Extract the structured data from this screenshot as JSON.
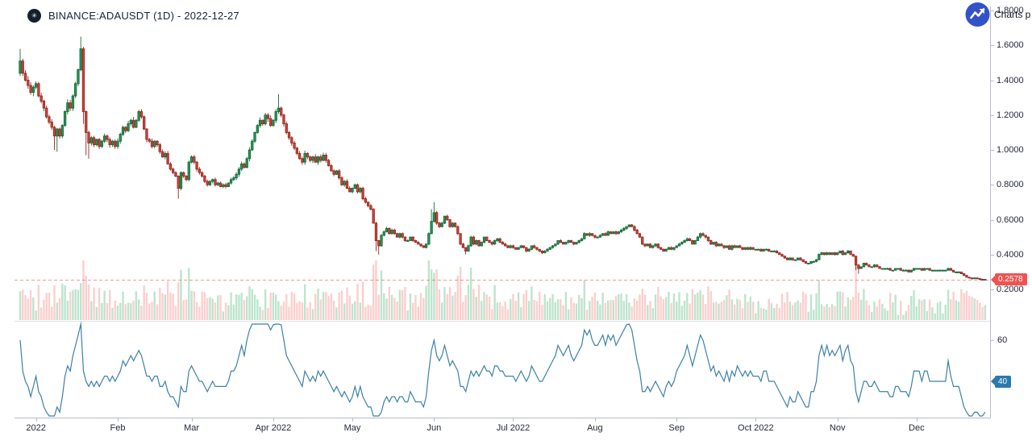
{
  "header": {
    "title": "BINANCE:ADAUSDT (1D) - 2022-12-27",
    "icon": "cardano-logo",
    "icon_glyph": "✳"
  },
  "attribution": {
    "text": "Charts p",
    "logo": "tradingview-logo",
    "logo_color": "#3452c8"
  },
  "price_axis": {
    "ticks": [
      "1.8000",
      "1.6000",
      "1.4000",
      "1.2000",
      "1.0000",
      "0.8000",
      "0.6000",
      "0.4000",
      "0.2000"
    ],
    "tick_values": [
      1.8,
      1.6,
      1.4,
      1.2,
      1.0,
      0.8,
      0.6,
      0.4,
      0.2
    ],
    "last_price_tag": {
      "text": "0.2578",
      "value": 0.2578,
      "color": "#ef5350"
    }
  },
  "indicator_axis": {
    "tick": "60",
    "tick_value": 60,
    "tag": {
      "text": "40",
      "value": 40,
      "color": "#2a7aad"
    }
  },
  "time_axis": {
    "labels": [
      {
        "text": "2022",
        "day_index": 6
      },
      {
        "text": "Feb",
        "day_index": 37
      },
      {
        "text": "Mar",
        "day_index": 65
      },
      {
        "text": "Apr 2022",
        "day_index": 96
      },
      {
        "text": "May",
        "day_index": 126
      },
      {
        "text": "Jun",
        "day_index": 157
      },
      {
        "text": "Jul 2022",
        "day_index": 187
      },
      {
        "text": "Aug",
        "day_index": 218
      },
      {
        "text": "Sep",
        "day_index": 249
      },
      {
        "text": "Oct 2022",
        "day_index": 279
      },
      {
        "text": "Nov",
        "day_index": 310
      },
      {
        "text": "Dec",
        "day_index": 340
      }
    ]
  },
  "chart_data": {
    "type": "candlestick",
    "symbol": "BINANCE:ADAUSDT",
    "interval": "1D",
    "as_of": "2022-12-27",
    "start_date": "2021-12-26",
    "title": "BINANCE:ADAUSDT (1D) - 2022-12-27",
    "ylim": [
      0.13,
      1.83
    ],
    "yticks": [
      1.8,
      1.6,
      1.4,
      1.2,
      1.0,
      0.8,
      0.6,
      0.4,
      0.2
    ],
    "grid": false,
    "legend_position": "top-left",
    "last_price": 0.2578,
    "first_open": 1.44,
    "closes": [
      1.51,
      1.44,
      1.4,
      1.37,
      1.33,
      1.36,
      1.38,
      1.31,
      1.28,
      1.24,
      1.19,
      1.16,
      1.13,
      1.08,
      1.12,
      1.08,
      1.14,
      1.22,
      1.27,
      1.24,
      1.31,
      1.38,
      1.46,
      1.58,
      1.22,
      1.1,
      1.04,
      1.07,
      1.03,
      1.06,
      1.02,
      1.05,
      1.08,
      1.06,
      1.03,
      1.05,
      1.02,
      1.05,
      1.09,
      1.13,
      1.11,
      1.15,
      1.17,
      1.13,
      1.17,
      1.22,
      1.19,
      1.12,
      1.06,
      1.05,
      1.02,
      1.05,
      1.03,
      0.99,
      0.96,
      0.98,
      0.92,
      0.89,
      0.87,
      0.85,
      0.78,
      0.87,
      0.85,
      0.83,
      0.93,
      0.96,
      0.93,
      0.89,
      0.87,
      0.85,
      0.82,
      0.8,
      0.82,
      0.83,
      0.8,
      0.81,
      0.79,
      0.8,
      0.79,
      0.81,
      0.83,
      0.84,
      0.86,
      0.89,
      0.92,
      0.9,
      0.95,
      1.0,
      1.05,
      1.1,
      1.14,
      1.17,
      1.15,
      1.2,
      1.18,
      1.14,
      1.17,
      1.22,
      1.24,
      1.2,
      1.15,
      1.1,
      1.07,
      1.04,
      1.01,
      0.98,
      0.95,
      0.93,
      0.98,
      0.96,
      0.94,
      0.96,
      0.93,
      0.96,
      0.94,
      0.97,
      0.94,
      0.91,
      0.88,
      0.86,
      0.88,
      0.84,
      0.8,
      0.82,
      0.78,
      0.76,
      0.78,
      0.8,
      0.76,
      0.78,
      0.72,
      0.7,
      0.68,
      0.66,
      0.58,
      0.48,
      0.45,
      0.51,
      0.53,
      0.55,
      0.52,
      0.54,
      0.52,
      0.5,
      0.52,
      0.5,
      0.48,
      0.48,
      0.5,
      0.48,
      0.47,
      0.46,
      0.45,
      0.44,
      0.46,
      0.52,
      0.59,
      0.64,
      0.58,
      0.56,
      0.58,
      0.62,
      0.6,
      0.56,
      0.58,
      0.56,
      0.52,
      0.46,
      0.44,
      0.42,
      0.45,
      0.5,
      0.46,
      0.48,
      0.45,
      0.47,
      0.5,
      0.48,
      0.47,
      0.46,
      0.48,
      0.49,
      0.47,
      0.46,
      0.45,
      0.44,
      0.45,
      0.44,
      0.43,
      0.44,
      0.45,
      0.44,
      0.42,
      0.43,
      0.45,
      0.44,
      0.43,
      0.42,
      0.41,
      0.42,
      0.43,
      0.44,
      0.45,
      0.46,
      0.48,
      0.47,
      0.46,
      0.47,
      0.48,
      0.47,
      0.46,
      0.47,
      0.48,
      0.49,
      0.52,
      0.51,
      0.52,
      0.51,
      0.5,
      0.5,
      0.51,
      0.52,
      0.51,
      0.53,
      0.52,
      0.53,
      0.52,
      0.53,
      0.54,
      0.55,
      0.56,
      0.57,
      0.56,
      0.54,
      0.52,
      0.5,
      0.46,
      0.45,
      0.46,
      0.44,
      0.45,
      0.46,
      0.44,
      0.43,
      0.42,
      0.43,
      0.44,
      0.43,
      0.44,
      0.45,
      0.46,
      0.47,
      0.48,
      0.49,
      0.48,
      0.46,
      0.48,
      0.5,
      0.52,
      0.51,
      0.5,
      0.48,
      0.46,
      0.47,
      0.45,
      0.46,
      0.45,
      0.44,
      0.45,
      0.43,
      0.45,
      0.44,
      0.45,
      0.44,
      0.43,
      0.44,
      0.43,
      0.44,
      0.43,
      0.43,
      0.43,
      0.42,
      0.43,
      0.43,
      0.42,
      0.42,
      0.42,
      0.41,
      0.4,
      0.39,
      0.38,
      0.37,
      0.38,
      0.37,
      0.37,
      0.38,
      0.37,
      0.36,
      0.35,
      0.35,
      0.36,
      0.36,
      0.37,
      0.4,
      0.41,
      0.4,
      0.41,
      0.4,
      0.41,
      0.4,
      0.41,
      0.42,
      0.4,
      0.41,
      0.42,
      0.4,
      0.39,
      0.34,
      0.32,
      0.33,
      0.35,
      0.34,
      0.33,
      0.33,
      0.34,
      0.33,
      0.32,
      0.32,
      0.32,
      0.32,
      0.31,
      0.31,
      0.32,
      0.32,
      0.31,
      0.31,
      0.31,
      0.3,
      0.31,
      0.32,
      0.32,
      0.32,
      0.31,
      0.32,
      0.32,
      0.31,
      0.31,
      0.31,
      0.31,
      0.31,
      0.31,
      0.31,
      0.32,
      0.31,
      0.3,
      0.3,
      0.3,
      0.29,
      0.28,
      0.27,
      0.265,
      0.262,
      0.266,
      0.262,
      0.258,
      0.256,
      0.2578
    ],
    "wick_overrides": {
      "0": {
        "high": 1.58
      },
      "13": {
        "low": 1.0
      },
      "14": {
        "low": 0.99
      },
      "23": {
        "high": 1.65
      },
      "24": {
        "low": 1.15
      },
      "25": {
        "low": 0.97
      },
      "26": {
        "low": 0.95
      },
      "60": {
        "low": 0.72
      },
      "98": {
        "high": 1.32
      },
      "135": {
        "low": 0.42
      },
      "136": {
        "low": 0.4
      },
      "156": {
        "high": 0.66
      },
      "157": {
        "high": 0.7
      },
      "169": {
        "low": 0.4
      },
      "317": {
        "low": 0.31
      },
      "318": {
        "low": 0.29
      }
    },
    "volume": {
      "note": "no numeric volume axis shown; bar heights proportional to daily move"
    },
    "indicator": {
      "type": "RSI",
      "period": 14,
      "last_value": 40,
      "visible_ticks": [
        60
      ],
      "tag_value": 40
    }
  },
  "colors": {
    "background": "#ffffff",
    "up": "#239b56",
    "up_border": "#17683a",
    "down": "#d6453a",
    "down_border": "#8f2a22",
    "vol_up": "rgba(38,166,91,0.30)",
    "vol_down": "rgba(239,83,80,0.28)",
    "rsi_line": "#3a80a8",
    "dashed_line": "rgba(239,83,80,0.60)",
    "axis_line": "#b8bcc6",
    "divider": "#e1e4ea",
    "text": "#24293a"
  }
}
